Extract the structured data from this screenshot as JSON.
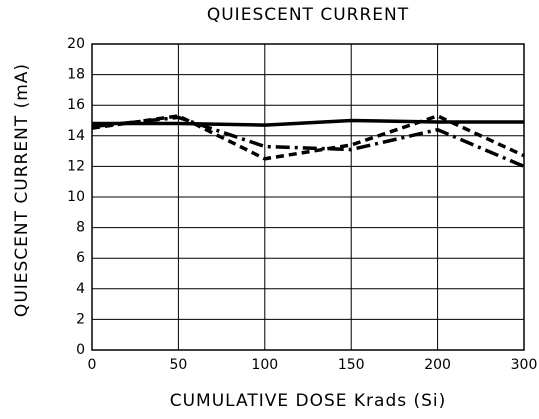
{
  "chart_data": {
    "type": "line",
    "title": "QUIESCENT CURRENT",
    "x_label": "CUMULATIVE DOSE Krads (Si)",
    "y_label": "QUIESCENT CURRENT (mA)",
    "categories": [
      "0",
      "50",
      "100",
      "150",
      "200",
      "300"
    ],
    "series": [
      {
        "color": "#000000",
        "dash": "solid",
        "values": [
          14.8,
          14.8,
          14.7,
          15.0,
          14.9,
          14.9
        ]
      },
      {
        "color": "#000000",
        "dash": "dashed",
        "values": [
          14.5,
          15.3,
          12.5,
          13.4,
          15.3,
          12.7
        ]
      },
      {
        "color": "#000000",
        "dash": "dashdot",
        "values": [
          14.6,
          15.2,
          13.3,
          13.1,
          14.4,
          12.0
        ]
      }
    ],
    "ylim": [
      0,
      20
    ],
    "yticks": [
      0,
      2,
      4,
      6,
      8,
      10,
      12,
      14,
      16,
      18,
      20
    ],
    "grid": true
  }
}
